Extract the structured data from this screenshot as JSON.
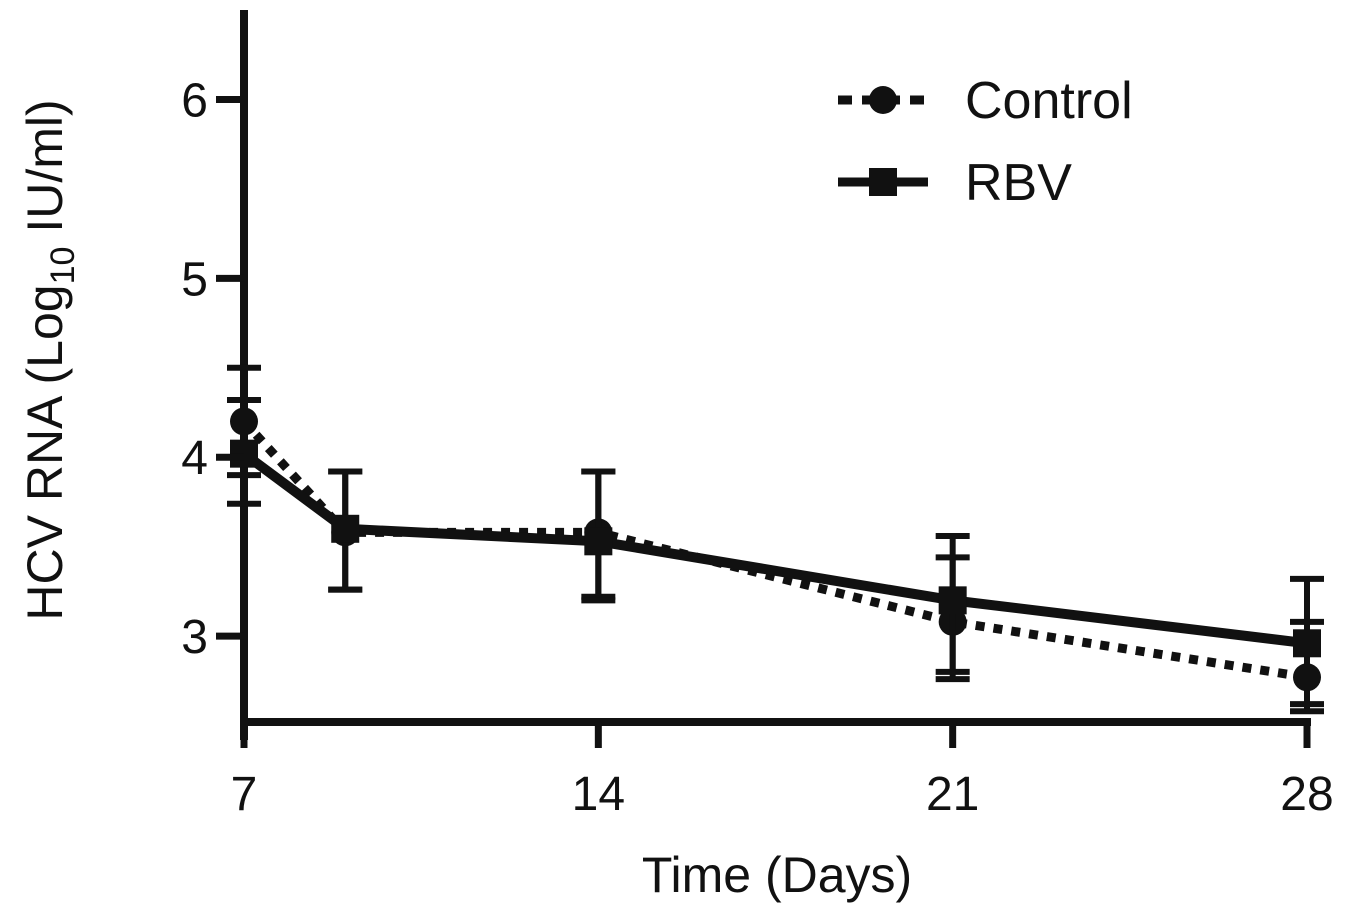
{
  "chart_data": {
    "type": "line",
    "xlabel": "Time (Days)",
    "ylabel": {
      "prefix": "HCV RNA (Log",
      "subscript": "10",
      "suffix": " IU/ml)"
    },
    "xlim": [
      7,
      28
    ],
    "ylim": [
      2.52,
      6.5
    ],
    "x_ticks": [
      7,
      14,
      21,
      28
    ],
    "x_tick_labels": [
      "7",
      "14",
      "21",
      "28"
    ],
    "y_ticks": [
      3,
      4,
      5,
      6
    ],
    "y_tick_labels": [
      "3",
      "4",
      "5",
      "6"
    ],
    "grid": false,
    "legend": "top-right",
    "series": [
      {
        "name": "Control",
        "marker": "circle",
        "line_style": "dotted",
        "color": "#111111",
        "x": [
          7,
          9,
          14,
          21,
          28
        ],
        "y": [
          4.2,
          3.58,
          3.58,
          3.08,
          2.77
        ],
        "err_upper": [
          4.5,
          3.92,
          3.92,
          3.44,
          3.08
        ],
        "err_lower": [
          3.9,
          3.26,
          3.22,
          2.8,
          2.62
        ]
      },
      {
        "name": "RBV",
        "marker": "square",
        "line_style": "solid",
        "color": "#111111",
        "x": [
          7,
          9,
          14,
          21,
          28
        ],
        "y": [
          4.02,
          3.6,
          3.53,
          3.2,
          2.96
        ],
        "err_upper": [
          4.32,
          3.92,
          3.92,
          3.56,
          3.32
        ],
        "err_lower": [
          3.74,
          3.26,
          3.2,
          2.76,
          2.58
        ]
      }
    ]
  }
}
